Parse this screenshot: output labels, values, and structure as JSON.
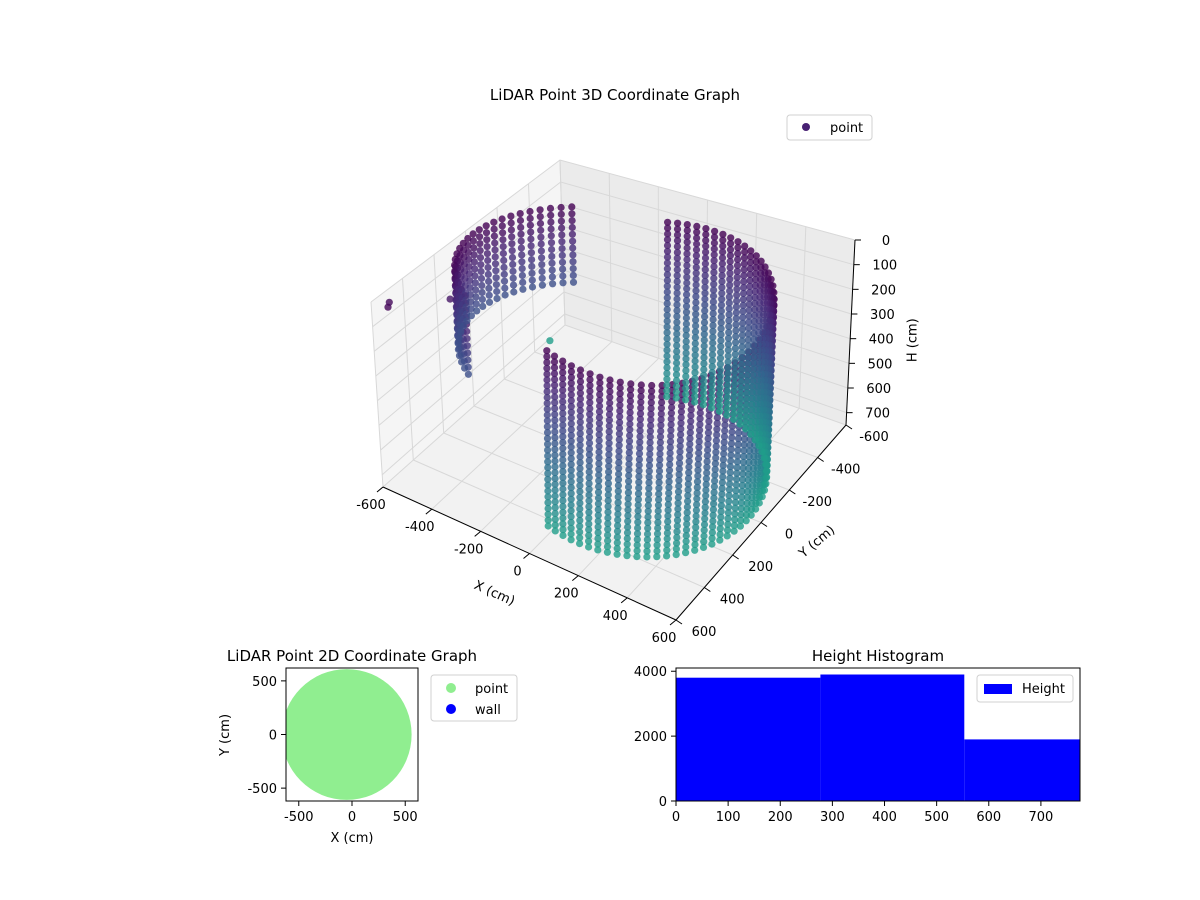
{
  "chart_data": [
    {
      "type": "scatter",
      "title": "LiDAR Point 3D Coordinate Graph",
      "xlabel": "X (cm)",
      "ylabel": "Y (cm)",
      "zlabel": "H (cm)",
      "xlim": [
        -600,
        600
      ],
      "ylim": [
        -600,
        600
      ],
      "zlim": [
        0,
        750
      ],
      "zinverted": true,
      "xticks": [
        "-600",
        "-400",
        "-200",
        "0",
        "200",
        "400",
        "600"
      ],
      "yticks": [
        "-600",
        "-400",
        "-200",
        "0",
        "200",
        "400",
        "600"
      ],
      "zticks": [
        "0",
        "100",
        "200",
        "300",
        "400",
        "500",
        "600",
        "700"
      ],
      "legend": {
        "position": "upper-right",
        "entries": [
          {
            "name": "point",
            "color": "#482173"
          }
        ]
      },
      "grid": true,
      "colormap": "viridis",
      "shapes": {
        "cylinder": {
          "center": [
            100,
            0
          ],
          "radius": 450,
          "start_angle_deg": -110,
          "end_angle_deg": 110
        },
        "back_arc": {
          "center": [
            -150,
            0
          ],
          "radius": 420,
          "start_angle_deg": 125,
          "end_angle_deg": 235
        },
        "stray_points": [
          [
            -580,
            520,
            30
          ],
          [
            -560,
            560,
            20
          ],
          [
            -600,
            -500,
            760
          ],
          [
            -480,
            300,
            80
          ]
        ]
      }
    },
    {
      "type": "scatter",
      "title": "LiDAR Point 2D Coordinate Graph",
      "xlabel": "X (cm)",
      "ylabel": "Y (cm)",
      "xlim": [
        -620,
        620
      ],
      "ylim": [
        -620,
        620
      ],
      "xticks": [
        "-500",
        "0",
        "500"
      ],
      "yticks": [
        "-500",
        "0",
        "500"
      ],
      "legend": {
        "position": "outside-right",
        "entries": [
          {
            "name": "point",
            "color": "#90ee90"
          },
          {
            "name": "wall",
            "color": "#0000ff"
          }
        ]
      },
      "point_region": {
        "center": [
          -50,
          0
        ],
        "radius": 610
      }
    },
    {
      "type": "bar",
      "title": "Height Histogram",
      "xlim": [
        0,
        775
      ],
      "ylim": [
        0,
        4100
      ],
      "xticks": [
        "0",
        "100",
        "200",
        "300",
        "400",
        "500",
        "600",
        "700"
      ],
      "yticks": [
        "0",
        "2000",
        "4000"
      ],
      "legend": {
        "position": "upper-right",
        "entries": [
          {
            "name": "Height",
            "color": "#0000ff"
          }
        ]
      },
      "bins": [
        {
          "from": 0,
          "to": 277,
          "value": 3800
        },
        {
          "from": 277,
          "to": 553,
          "value": 3900
        },
        {
          "from": 553,
          "to": 775,
          "value": 1900
        }
      ],
      "color": "#0000ff"
    }
  ]
}
